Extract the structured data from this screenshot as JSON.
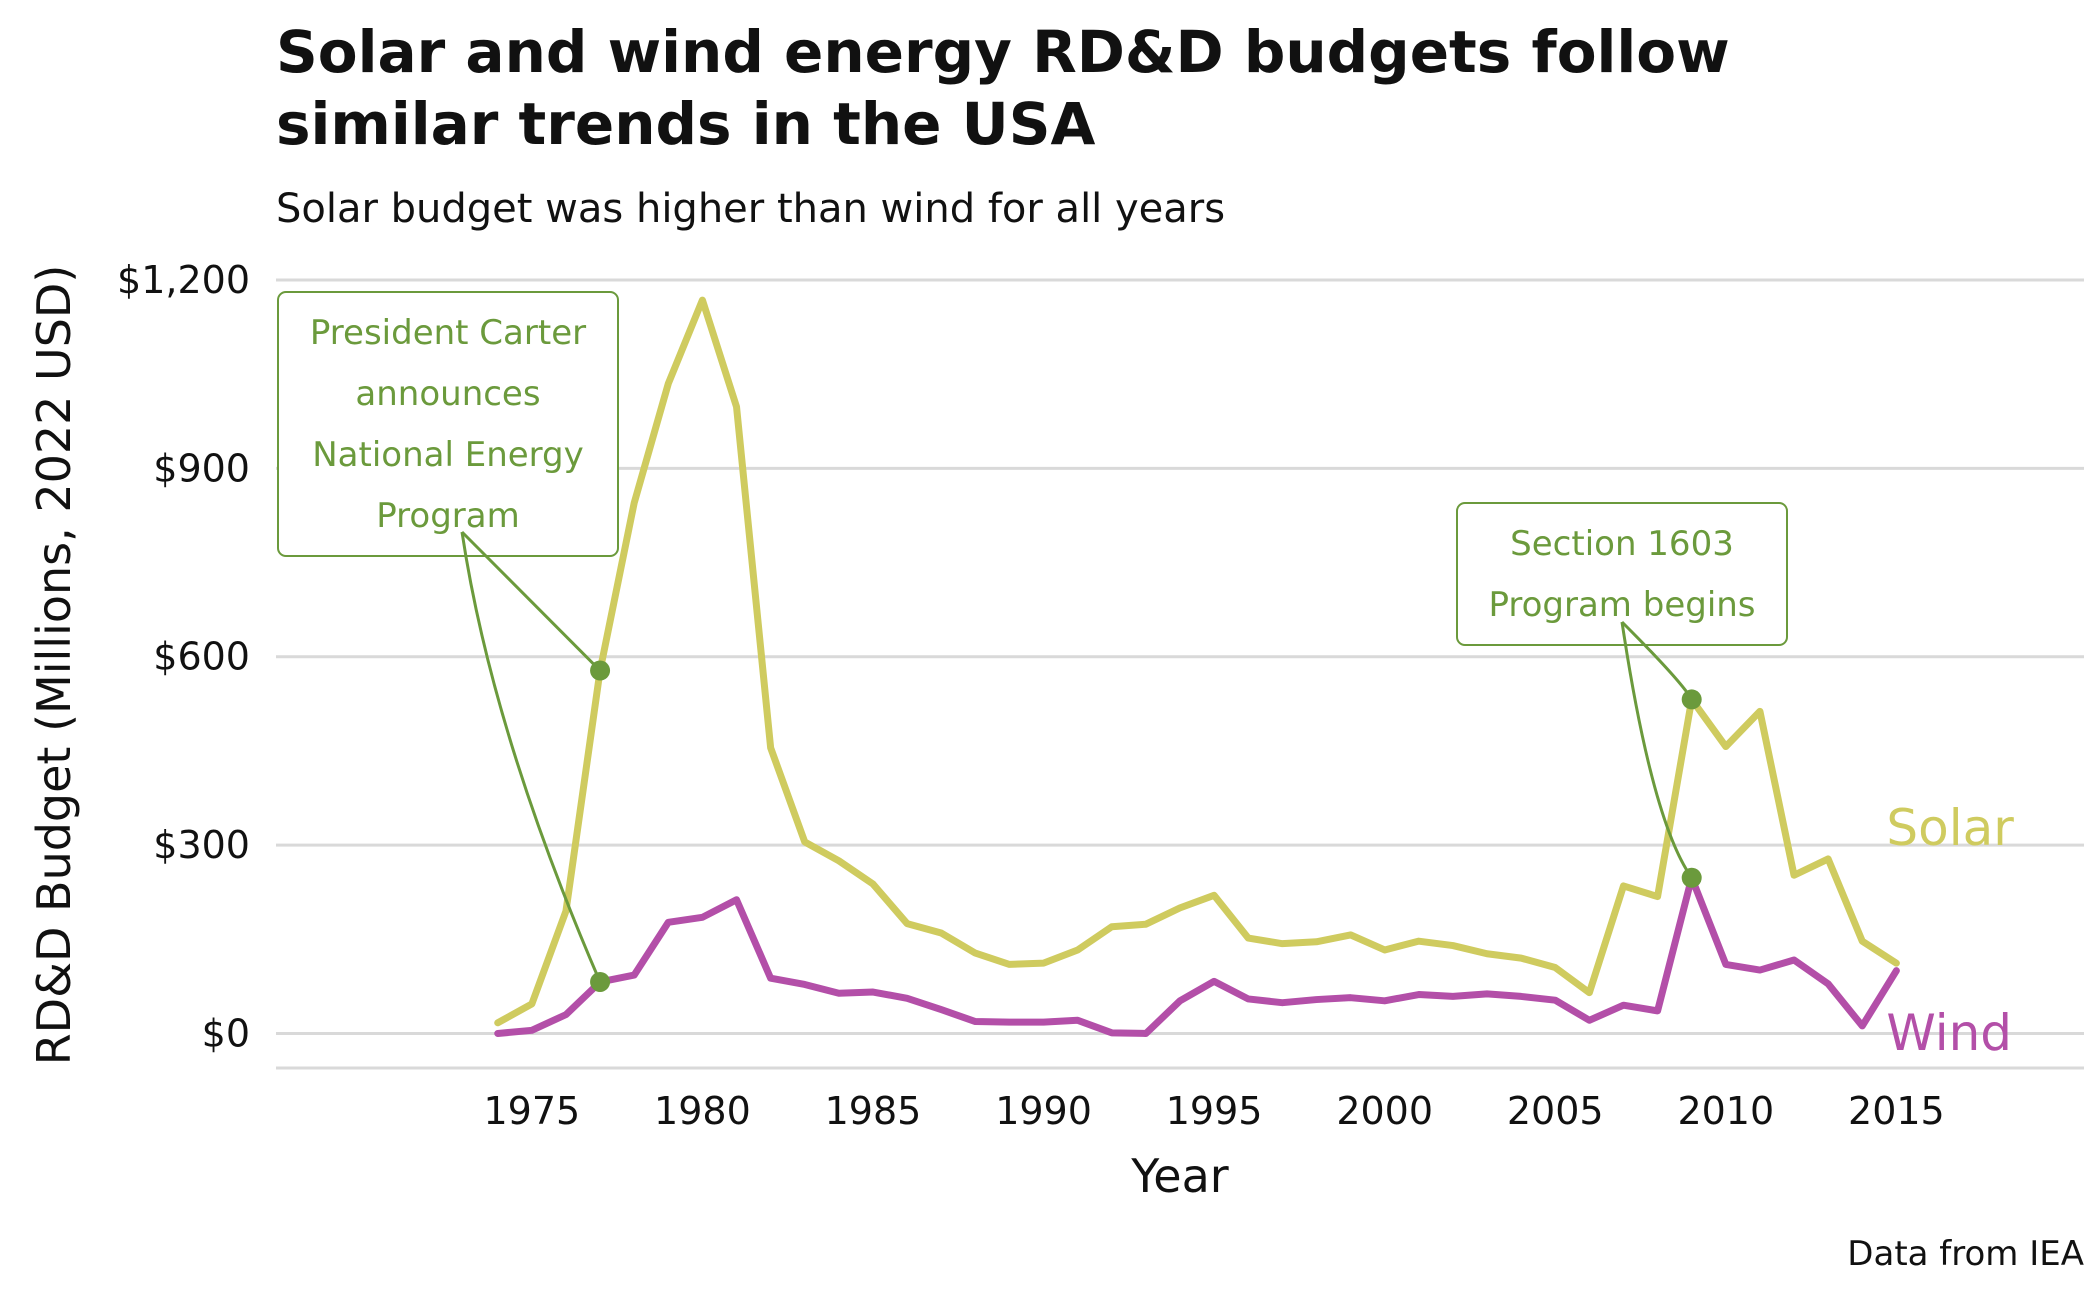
{
  "chart_data": {
    "type": "line",
    "title": "Solar and wind energy RD&D budgets follow similar trends in the USA",
    "title_lines": [
      "Solar and wind energy RD&D budgets follow",
      "similar trends in the USA"
    ],
    "subtitle": "Solar budget was higher than wind for all years",
    "xlabel": "Year",
    "ylabel": "RD&D Budget (Millions, 2022 USD)",
    "caption": "Data from IEA",
    "xlim": [
      1967.5,
      2020.5
    ],
    "ylim": [
      -55,
      1200
    ],
    "x_ticks": [
      1975,
      1980,
      1985,
      1990,
      1995,
      2000,
      2005,
      2010,
      2015
    ],
    "x_tick_labels": [
      "1975",
      "1980",
      "1985",
      "1990",
      "1995",
      "2000",
      "2005",
      "2010",
      "2015"
    ],
    "y_ticks": [
      0,
      300,
      600,
      900,
      1200
    ],
    "y_tick_labels": [
      "$0",
      "$300",
      "$600",
      "$900",
      "$1,200"
    ],
    "grid": "horizontal",
    "legend": "direct labels at line ends",
    "x": [
      1974,
      1975,
      1976,
      1977,
      1978,
      1979,
      1980,
      1981,
      1982,
      1983,
      1984,
      1985,
      1986,
      1987,
      1988,
      1989,
      1990,
      1991,
      1992,
      1993,
      1994,
      1995,
      1996,
      1997,
      1998,
      1999,
      2000,
      2001,
      2002,
      2003,
      2004,
      2005,
      2006,
      2007,
      2008,
      2009,
      2010,
      2011,
      2012,
      2013,
      2014,
      2015
    ],
    "series": [
      {
        "name": "Solar",
        "color": "#cfcb5f",
        "values": [
          17,
          47,
          195,
          578,
          845,
          1035,
          1168,
          998,
          455,
          305,
          275,
          238,
          175,
          160,
          128,
          110,
          112,
          133,
          170,
          174,
          200,
          220,
          152,
          143,
          146,
          157,
          133,
          147,
          140,
          127,
          120,
          105,
          65,
          235,
          218,
          532,
          457,
          513,
          252,
          278,
          147,
          112
        ]
      },
      {
        "name": "Wind",
        "color": "#b34fa8",
        "values": [
          0,
          5,
          30,
          82,
          93,
          177,
          185,
          213,
          88,
          78,
          64,
          66,
          56,
          38,
          19,
          18,
          18,
          21,
          1,
          0,
          52,
          83,
          55,
          49,
          54,
          57,
          52,
          62,
          59,
          63,
          59,
          53,
          21,
          45,
          36,
          248,
          110,
          101,
          117,
          79,
          12,
          100
        ]
      }
    ],
    "annotations": [
      {
        "lines": [
          "President Carter",
          "announces",
          "National Energy",
          "Program"
        ],
        "year": 1977,
        "points": [
          {
            "series": "Solar",
            "y": 578
          },
          {
            "series": "Wind",
            "y": 82
          }
        ],
        "color": "#6b9a3c"
      },
      {
        "lines": [
          "Section 1603",
          "Program begins"
        ],
        "year": 2009,
        "points": [
          {
            "series": "Solar",
            "y": 532
          },
          {
            "series": "Wind",
            "y": 248
          }
        ],
        "color": "#6b9a3c"
      }
    ]
  }
}
